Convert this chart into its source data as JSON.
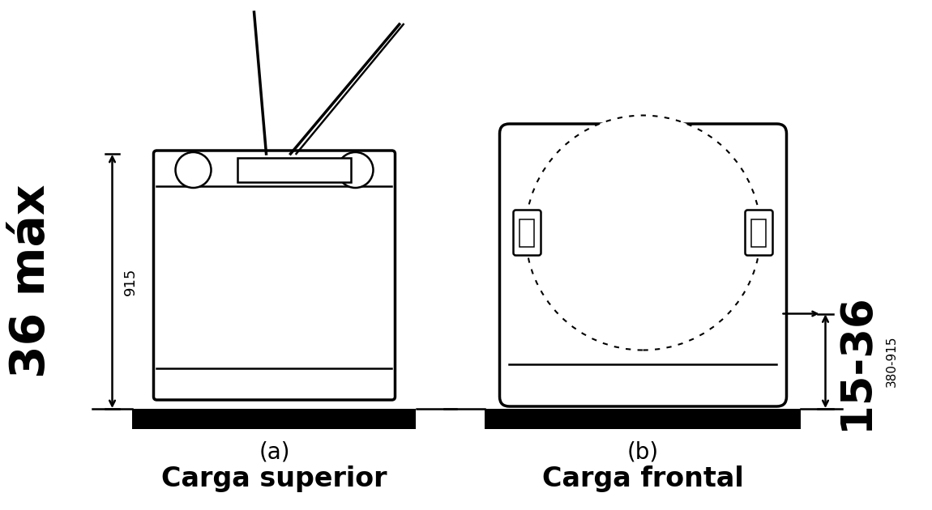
{
  "fig_width": 11.22,
  "fig_height": 6.1,
  "bg_color": "#ffffff",
  "line_color": "#000000",
  "label_a": "(a)",
  "label_b": "(b)",
  "title_a": "Carga superior",
  "title_b": "Carga frontal",
  "dim_36max_top": "36 máx",
  "dim_915": "915",
  "dim_15_36": "15-36",
  "dim_380_915": "380-915"
}
